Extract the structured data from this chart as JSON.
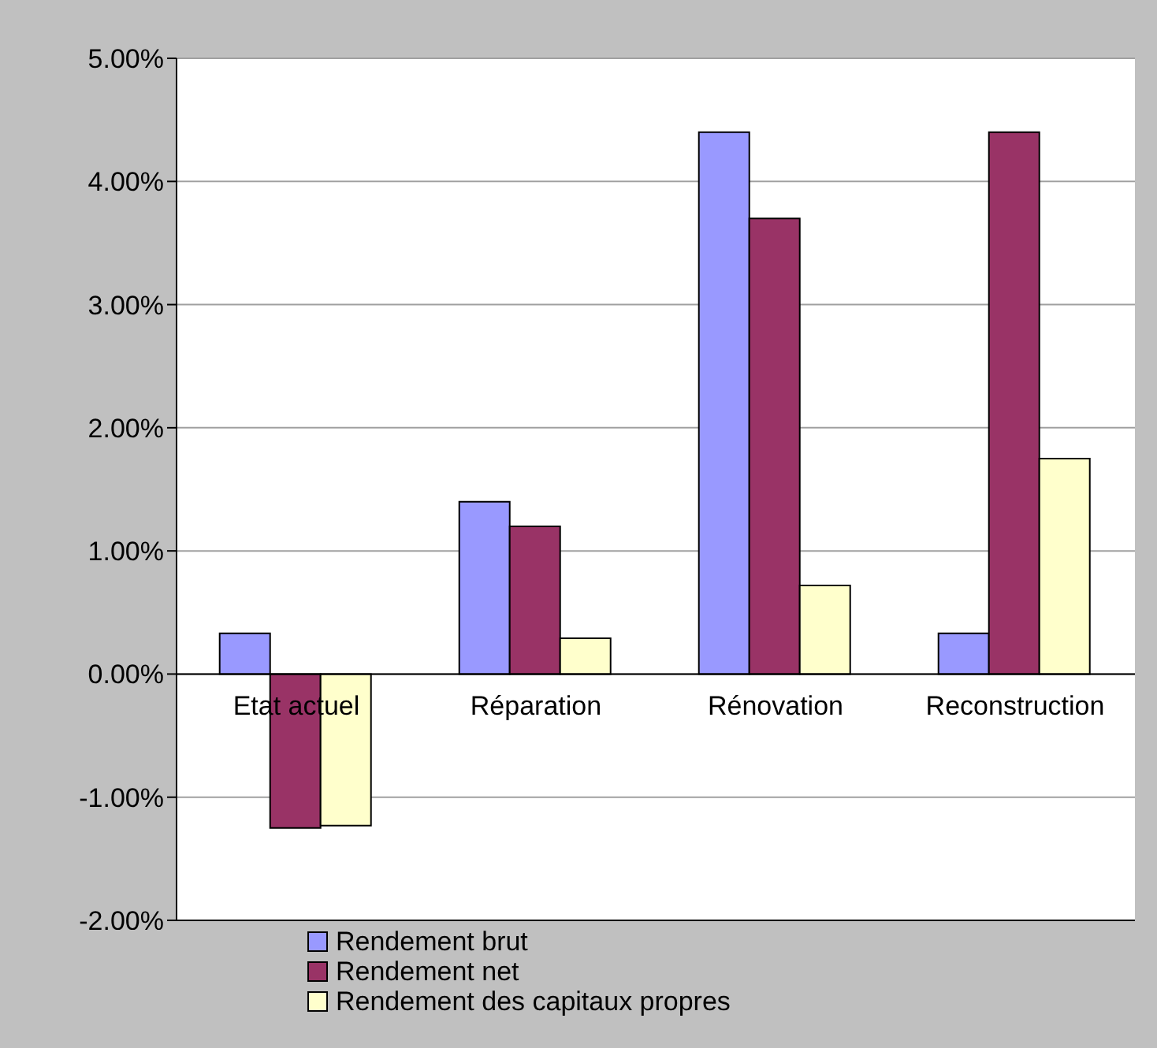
{
  "chart_data": {
    "type": "bar",
    "categories": [
      "Etat actuel",
      "Réparation",
      "Rénovation",
      "Reconstruction"
    ],
    "series": [
      {
        "name": "Rendement brut",
        "color": "#9999ff",
        "values": [
          0.33,
          1.4,
          4.4,
          0.33
        ]
      },
      {
        "name": "Rendement net",
        "color": "#993366",
        "values": [
          -1.25,
          1.2,
          3.7,
          4.4
        ]
      },
      {
        "name": "Rendement des capitaux propres",
        "color": "#ffffcc",
        "values": [
          -1.23,
          0.29,
          0.72,
          1.75
        ]
      }
    ],
    "ylim": [
      -2,
      5
    ],
    "yticks": [
      {
        "value": -2,
        "label": "-2.00%"
      },
      {
        "value": -1,
        "label": "-1.00%"
      },
      {
        "value": 0,
        "label": "0.00%"
      },
      {
        "value": 1,
        "label": "1.00%"
      },
      {
        "value": 2,
        "label": "2.00%"
      },
      {
        "value": 3,
        "label": "3.00%"
      },
      {
        "value": 4,
        "label": "4.00%"
      },
      {
        "value": 5,
        "label": "5.00%"
      }
    ],
    "grid": "y",
    "legend": "bottom"
  }
}
